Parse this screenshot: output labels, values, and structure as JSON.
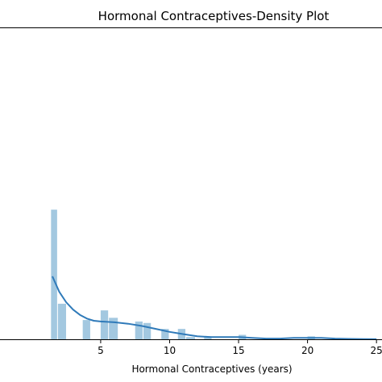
{
  "chart_data": {
    "type": "histogram with density curve",
    "title": "Hormonal Contraceptives-Density Plot",
    "xlabel": "Hormonal Contraceptives (years)",
    "ylabel": "",
    "xlim": [
      -2.3,
      25.4
    ],
    "ylim": [
      0,
      0.42
    ],
    "grid": false,
    "x_ticks": [
      5,
      10,
      15,
      20,
      25
    ],
    "x_tick_labels": [
      "5",
      "10",
      "15",
      "20",
      "25"
    ],
    "colors": {
      "bars": "#a3c8e0",
      "kde": "#2f7ab9"
    },
    "bins": [
      {
        "x0": 1.4,
        "x1": 1.9,
        "density": 0.175
      },
      {
        "x0": 1.9,
        "x1": 2.55,
        "density": 0.048
      },
      {
        "x0": 3.7,
        "x1": 4.3,
        "density": 0.026
      },
      {
        "x0": 4.3,
        "x1": 5.0,
        "density": 0.0
      },
      {
        "x0": 5.0,
        "x1": 5.6,
        "density": 0.039
      },
      {
        "x0": 5.6,
        "x1": 6.3,
        "density": 0.029
      },
      {
        "x0": 7.5,
        "x1": 8.1,
        "density": 0.024
      },
      {
        "x0": 8.1,
        "x1": 8.7,
        "density": 0.022
      },
      {
        "x0": 9.4,
        "x1": 10.0,
        "density": 0.014
      },
      {
        "x0": 10.0,
        "x1": 10.6,
        "density": 0.0
      },
      {
        "x0": 10.6,
        "x1": 11.2,
        "density": 0.014
      },
      {
        "x0": 11.2,
        "x1": 11.9,
        "density": 0.003
      },
      {
        "x0": 12.5,
        "x1": 13.1,
        "density": 0.004
      },
      {
        "x0": 15.0,
        "x1": 15.6,
        "density": 0.006
      },
      {
        "x0": 20.0,
        "x1": 20.6,
        "density": 0.004
      }
    ],
    "kde": {
      "x": [
        1.5,
        2.0,
        2.5,
        3.0,
        3.5,
        4.0,
        4.5,
        5.0,
        6.0,
        7.0,
        8.0,
        9.0,
        10.0,
        11.0,
        12.0,
        13.0,
        14.0,
        15.0,
        16.0,
        17.0,
        18.0,
        19.0,
        20.0,
        21.0,
        22.0,
        23.0,
        24.0,
        25.0
      ],
      "y": [
        0.085,
        0.064,
        0.05,
        0.04,
        0.033,
        0.028,
        0.025,
        0.024,
        0.023,
        0.021,
        0.018,
        0.014,
        0.01,
        0.007,
        0.004,
        0.003,
        0.003,
        0.003,
        0.002,
        0.001,
        0.001,
        0.002,
        0.002,
        0.002,
        0.001,
        0.0005,
        0.0002,
        0.0001
      ]
    }
  }
}
